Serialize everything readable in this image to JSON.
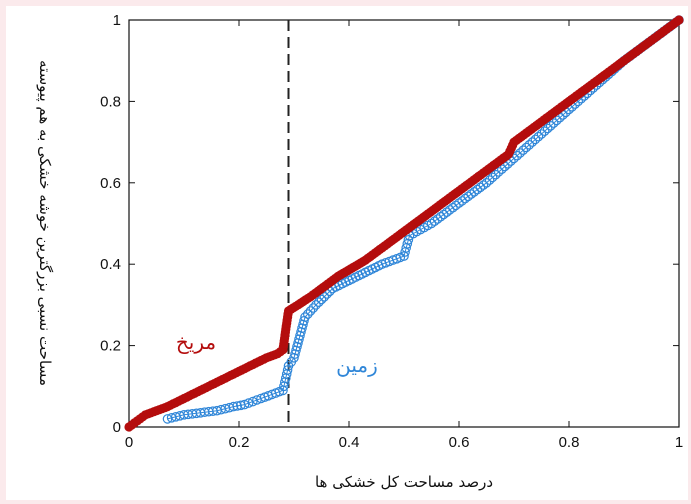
{
  "colors": {
    "page_bg": "#fbeaec",
    "mars": "#b40d0d",
    "earth": "#2f86d8",
    "divider": "#222222"
  },
  "chart_data": {
    "type": "scatter",
    "xlabel": "درصد مساحت کل خشکی ها",
    "ylabel": "مساحت نسبی بزرگترین خوشه خشکی به هم پیوسته",
    "xlim": [
      0,
      1
    ],
    "ylim": [
      0,
      1
    ],
    "x_ticks": [
      0,
      0.2,
      0.4,
      0.6,
      0.8,
      1
    ],
    "x_tick_labels": [
      "0",
      "0.2",
      "0.4",
      "0.6",
      "0.8",
      "1"
    ],
    "y_ticks": [
      0,
      0.2,
      0.4,
      0.6,
      0.8,
      1
    ],
    "y_tick_labels": [
      "0",
      "0.2",
      "0.4",
      "0.6",
      "0.8",
      "1"
    ],
    "grid": false,
    "vline": {
      "x": 0.29,
      "style": "dashed"
    },
    "series": [
      {
        "name": "مریخ",
        "marker": "filled-circle",
        "color": "#b40d0d",
        "x": [
          0.0,
          0.01,
          0.02,
          0.03,
          0.05,
          0.07,
          0.1,
          0.13,
          0.16,
          0.19,
          0.22,
          0.25,
          0.27,
          0.28,
          0.285,
          0.29,
          0.33,
          0.38,
          0.43,
          0.5,
          0.57,
          0.64,
          0.69,
          0.7,
          0.75,
          0.8,
          0.85,
          0.9,
          0.95,
          1.0
        ],
        "y": [
          0.0,
          0.01,
          0.02,
          0.03,
          0.04,
          0.05,
          0.07,
          0.09,
          0.11,
          0.13,
          0.15,
          0.17,
          0.18,
          0.19,
          0.24,
          0.285,
          0.32,
          0.37,
          0.41,
          0.48,
          0.55,
          0.62,
          0.67,
          0.7,
          0.75,
          0.8,
          0.85,
          0.9,
          0.95,
          1.0
        ]
      },
      {
        "name": "زمین",
        "marker": "open-circle",
        "color": "#2f86d8",
        "x": [
          0.07,
          0.1,
          0.13,
          0.16,
          0.19,
          0.21,
          0.24,
          0.26,
          0.28,
          0.29,
          0.3,
          0.32,
          0.34,
          0.37,
          0.4,
          0.43,
          0.46,
          0.5,
          0.51,
          0.55,
          0.6,
          0.65,
          0.7,
          0.75,
          0.8,
          0.85,
          0.9,
          0.95,
          1.0
        ],
        "y": [
          0.02,
          0.03,
          0.035,
          0.04,
          0.05,
          0.055,
          0.07,
          0.08,
          0.09,
          0.15,
          0.17,
          0.27,
          0.3,
          0.34,
          0.36,
          0.38,
          0.4,
          0.42,
          0.47,
          0.5,
          0.55,
          0.6,
          0.66,
          0.72,
          0.78,
          0.84,
          0.9,
          0.95,
          1.0
        ]
      }
    ]
  }
}
